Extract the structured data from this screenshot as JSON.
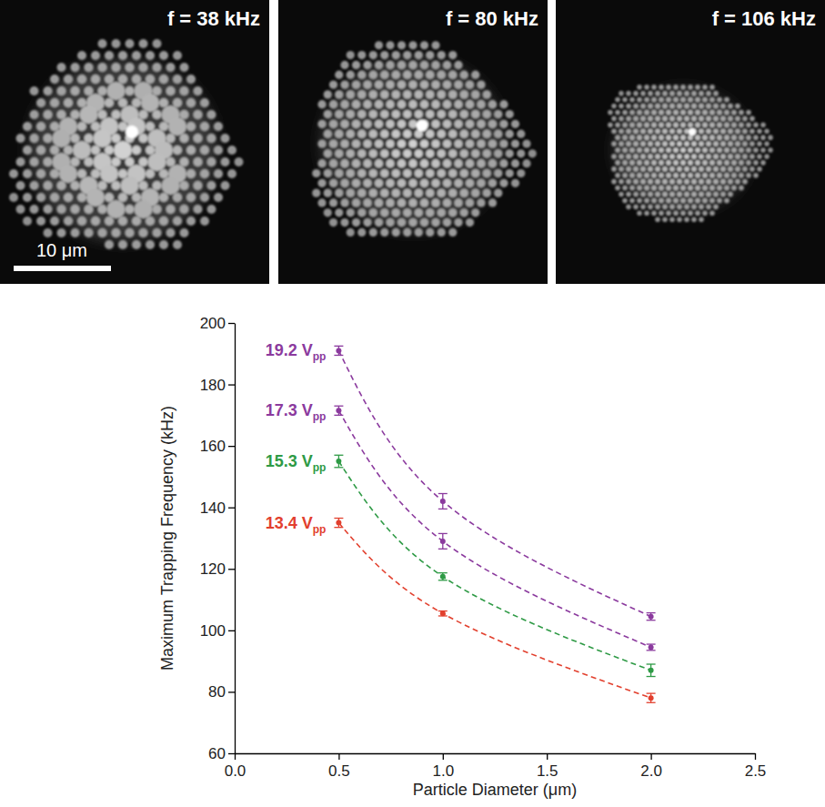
{
  "panels": [
    {
      "label": "f = 38 kHz"
    },
    {
      "label": "f = 80 kHz"
    },
    {
      "label": "f = 106 kHz"
    }
  ],
  "scale_bar": "10 μm",
  "chart_data": {
    "type": "scatter",
    "x_label": "Particle Diameter (μm)",
    "y_label": "Maximum Trapping Frequency (kHz)",
    "x": [
      0.5,
      1,
      2
    ],
    "xlim": [
      0,
      2.5
    ],
    "xticks": [
      {
        "value": 0,
        "label": "0.0"
      },
      0.5,
      {
        "value": 1,
        "label": "1.0"
      },
      1.5,
      {
        "value": 2,
        "label": "2.0"
      },
      2.5
    ],
    "ylim": [
      60,
      200
    ],
    "yticks": [
      60,
      80,
      100,
      120,
      140,
      160,
      180,
      200
    ],
    "marker": "circle",
    "line_style": "dashed",
    "series": [
      {
        "name": "19.2 Vpp",
        "color": "#8b3a9e",
        "values": [
          191,
          142,
          104.5
        ],
        "errors": [
          1.5,
          2.5,
          1.2
        ]
      },
      {
        "name": "17.3 Vpp",
        "color": "#8b3a9e",
        "values": [
          171.5,
          129,
          94.5
        ],
        "errors": [
          1.5,
          2.5,
          1
        ]
      },
      {
        "name": "15.3 Vpp",
        "color": "#2e9a45",
        "values": [
          155,
          117.5,
          87
        ],
        "errors": [
          2,
          1.2,
          2
        ]
      },
      {
        "name": "13.4 Vpp",
        "color": "#e2402e",
        "values": [
          135,
          105.5,
          78
        ],
        "errors": [
          1.5,
          0.8,
          1.5
        ]
      }
    ]
  }
}
